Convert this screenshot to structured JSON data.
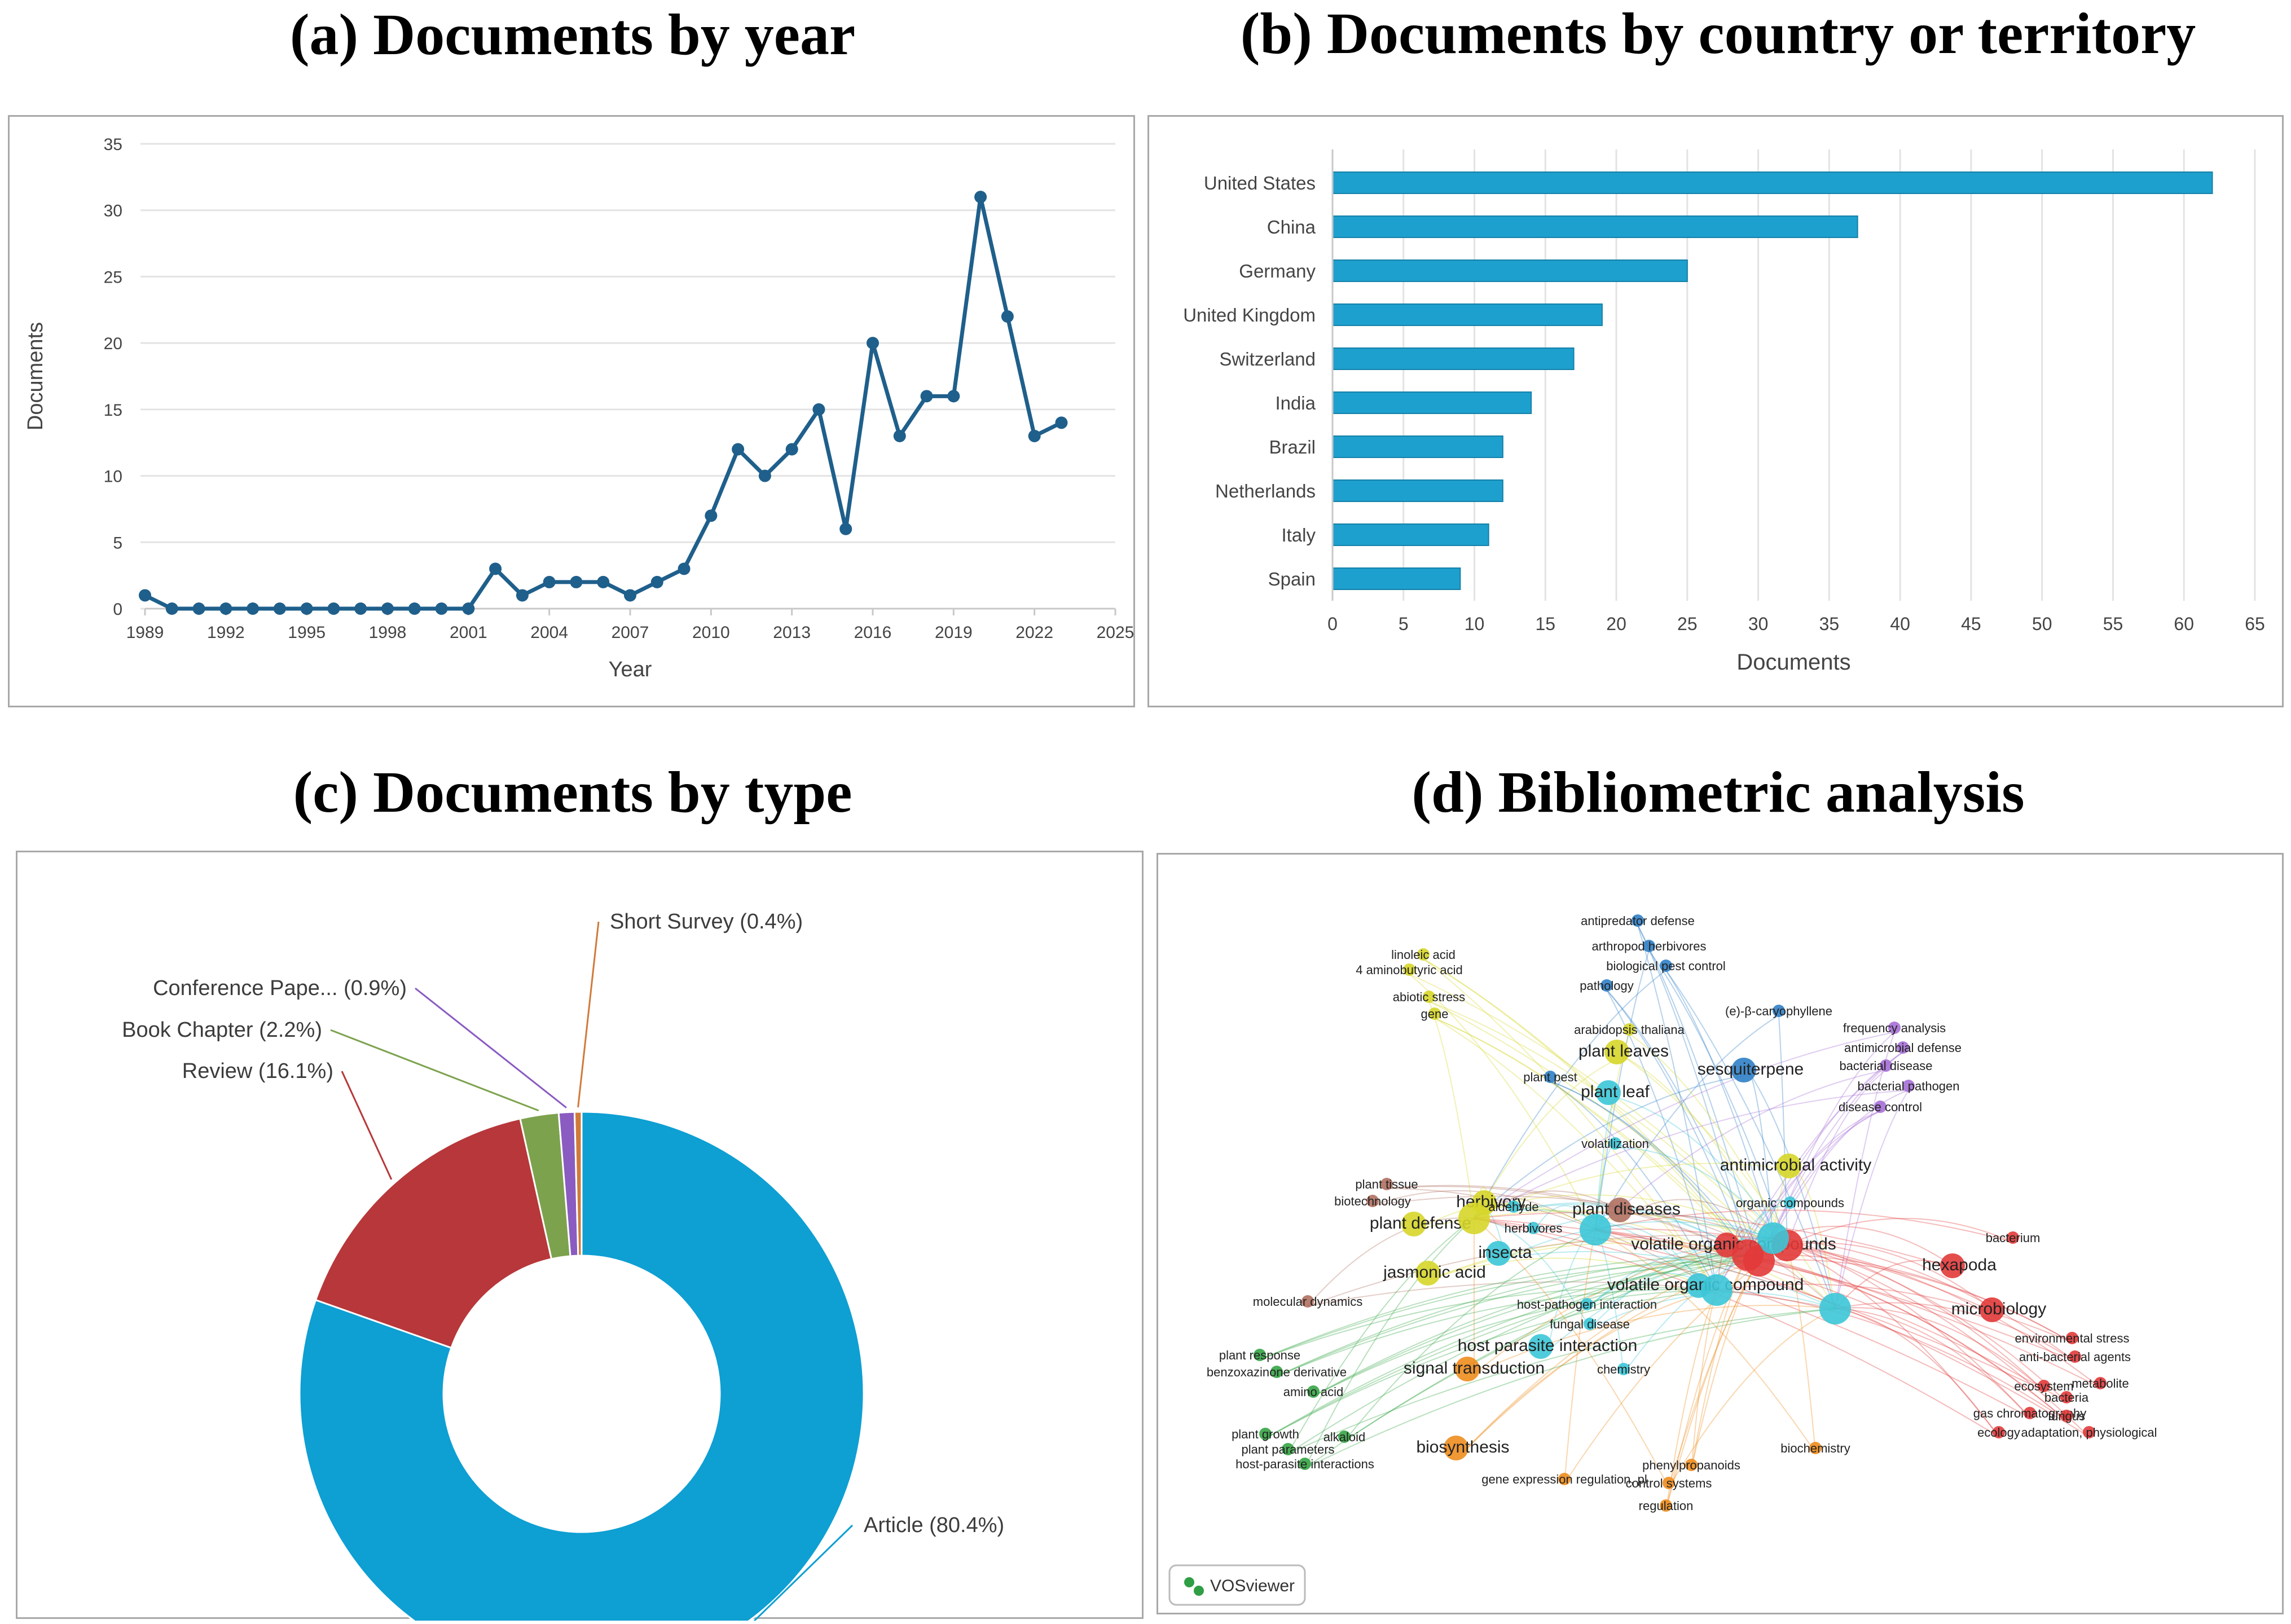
{
  "panels": {
    "a": {
      "title": "(a) Documents by year"
    },
    "b": {
      "title": "(b) Documents by country or territory"
    },
    "c": {
      "title": "(c) Documents by type"
    },
    "d": {
      "title": "(d) Bibliometric analysis"
    }
  },
  "colors": {
    "line": "#1f5f8b",
    "bar": "#1ea0cf",
    "grid": "#e3e3e3"
  },
  "chart_data": [
    {
      "type": "line",
      "title": "(a) Documents by year",
      "xlabel": "Year",
      "ylabel": "Documents",
      "xlim": [
        1989,
        2025
      ],
      "ylim": [
        0,
        35
      ],
      "xticks": [
        1989,
        1992,
        1995,
        1998,
        2001,
        2004,
        2007,
        2010,
        2013,
        2016,
        2019,
        2022,
        2025
      ],
      "yticks": [
        0,
        5,
        10,
        15,
        20,
        25,
        30,
        35
      ],
      "grid": true,
      "x": [
        1989,
        1990,
        1991,
        1992,
        1993,
        1994,
        1995,
        1996,
        1997,
        1998,
        1999,
        2000,
        2001,
        2002,
        2003,
        2004,
        2005,
        2006,
        2007,
        2008,
        2009,
        2010,
        2011,
        2012,
        2013,
        2014,
        2015,
        2016,
        2017,
        2018,
        2019,
        2020,
        2021,
        2022,
        2023
      ],
      "values": [
        1,
        0,
        0,
        0,
        0,
        0,
        0,
        0,
        0,
        0,
        0,
        0,
        0,
        3,
        1,
        2,
        2,
        2,
        1,
        2,
        3,
        7,
        12,
        10,
        12,
        15,
        6,
        20,
        13,
        16,
        16,
        31,
        22,
        13,
        14
      ]
    },
    {
      "type": "bar",
      "orientation": "horizontal",
      "title": "(b) Documents by country or territory",
      "xlabel": "Documents",
      "xlim": [
        0,
        65
      ],
      "xticks": [
        0,
        5,
        10,
        15,
        20,
        25,
        30,
        35,
        40,
        45,
        50,
        55,
        60,
        65
      ],
      "grid": true,
      "categories": [
        "United States",
        "China",
        "Germany",
        "United Kingdom",
        "Switzerland",
        "India",
        "Brazil",
        "Netherlands",
        "Italy",
        "Spain"
      ],
      "values": [
        62,
        37,
        25,
        19,
        17,
        14,
        12,
        12,
        11,
        9
      ]
    },
    {
      "type": "pie",
      "donut": true,
      "title": "(c) Documents by type",
      "slices": [
        {
          "label": "Article (80.4%)",
          "value": 80.4,
          "color": "#0e9fd3"
        },
        {
          "label": "Review (16.1%)",
          "value": 16.1,
          "color": "#b7373a"
        },
        {
          "label": "Book Chapter (2.2%)",
          "value": 2.2,
          "color": "#7da24e"
        },
        {
          "label": "Conference Pape... (0.9%)",
          "value": 0.9,
          "color": "#8a5bc1"
        },
        {
          "label": "Short Survey (0.4%)",
          "value": 0.4,
          "color": "#d07a3a"
        }
      ]
    }
  ],
  "network": {
    "title": "(d) Bibliometric analysis",
    "logo": "VOSviewer",
    "clusters": {
      "red": "#e23a3a",
      "cyan": "#3cc7d8",
      "blue": "#2f7fc6",
      "yellow": "#d6d62a",
      "green": "#35a545",
      "orange": "#ee8d1e",
      "purple": "#a56fd6",
      "brown": "#b07060"
    },
    "labels": [
      {
        "text": "antipredator defense",
        "c": "blue",
        "big": false
      },
      {
        "text": "arthropod herbivores",
        "c": "blue",
        "big": false
      },
      {
        "text": "biological pest control",
        "c": "blue",
        "big": false
      },
      {
        "text": "pathology",
        "c": "blue",
        "big": false
      },
      {
        "text": "(e)-β-caryophyllene",
        "c": "blue",
        "big": false
      },
      {
        "text": "sesquiterpene",
        "c": "blue",
        "big": true
      },
      {
        "text": "linoleic acid",
        "c": "yellow",
        "big": false
      },
      {
        "text": "4 aminobutyric acid",
        "c": "yellow",
        "big": false
      },
      {
        "text": "abiotic stress",
        "c": "yellow",
        "big": false
      },
      {
        "text": "gene",
        "c": "yellow",
        "big": false
      },
      {
        "text": "arabidopsis thaliana",
        "c": "yellow",
        "big": false
      },
      {
        "text": "plant leaves",
        "c": "yellow",
        "big": true
      },
      {
        "text": "plant pest",
        "c": "blue",
        "big": false
      },
      {
        "text": "plant leaf",
        "c": "cyan",
        "big": true
      },
      {
        "text": "frequency analysis",
        "c": "purple",
        "big": false
      },
      {
        "text": "antimicrobial defense",
        "c": "purple",
        "big": false
      },
      {
        "text": "bacterial disease",
        "c": "purple",
        "big": false
      },
      {
        "text": "bacterial pathogen",
        "c": "purple",
        "big": false
      },
      {
        "text": "disease control",
        "c": "purple",
        "big": false
      },
      {
        "text": "volatilization",
        "c": "cyan",
        "big": false
      },
      {
        "text": "antimicrobial activity",
        "c": "yellow",
        "big": true
      },
      {
        "text": "plant tissue",
        "c": "brown",
        "big": false
      },
      {
        "text": "biotechnology",
        "c": "brown",
        "big": false
      },
      {
        "text": "herbivory",
        "c": "yellow",
        "big": true
      },
      {
        "text": "aldehyde",
        "c": "cyan",
        "big": false
      },
      {
        "text": "herbivores",
        "c": "cyan",
        "big": false
      },
      {
        "text": "plant diseases",
        "c": "brown",
        "big": true
      },
      {
        "text": "organic compounds",
        "c": "cyan",
        "big": false
      },
      {
        "text": "plant defense",
        "c": "yellow",
        "big": true
      },
      {
        "text": "insecta",
        "c": "cyan",
        "big": true
      },
      {
        "text": "volatile organic compounds",
        "c": "red",
        "big": true
      },
      {
        "text": "bacterium",
        "c": "red",
        "big": false
      },
      {
        "text": "hexapoda",
        "c": "red",
        "big": true
      },
      {
        "text": "jasmonic acid",
        "c": "yellow",
        "big": true
      },
      {
        "text": "volatile organic compound",
        "c": "cyan",
        "big": true
      },
      {
        "text": "molecular dynamics",
        "c": "brown",
        "big": false
      },
      {
        "text": "host-pathogen interaction",
        "c": "cyan",
        "big": false
      },
      {
        "text": "microbiology",
        "c": "red",
        "big": true
      },
      {
        "text": "fungal disease",
        "c": "cyan",
        "big": false
      },
      {
        "text": "environmental stress",
        "c": "red",
        "big": false
      },
      {
        "text": "host parasite interaction",
        "c": "cyan",
        "big": true
      },
      {
        "text": "anti-bacterial agents",
        "c": "red",
        "big": false
      },
      {
        "text": "plant response",
        "c": "green",
        "big": false
      },
      {
        "text": "chemistry",
        "c": "cyan",
        "big": false
      },
      {
        "text": "signal transduction",
        "c": "orange",
        "big": true
      },
      {
        "text": "benzoxazinone derivative",
        "c": "green",
        "big": false
      },
      {
        "text": "metabolite",
        "c": "red",
        "big": false
      },
      {
        "text": "ecosystem",
        "c": "red",
        "big": false
      },
      {
        "text": "amino acid",
        "c": "green",
        "big": false
      },
      {
        "text": "bacteria",
        "c": "red",
        "big": false
      },
      {
        "text": "gas chromatography",
        "c": "red",
        "big": false
      },
      {
        "text": "fungus",
        "c": "red",
        "big": false
      },
      {
        "text": "adaptation, physiological",
        "c": "red",
        "big": false
      },
      {
        "text": "ecology",
        "c": "red",
        "big": false
      },
      {
        "text": "plant growth",
        "c": "green",
        "big": false
      },
      {
        "text": "alkaloid",
        "c": "green",
        "big": false
      },
      {
        "text": "plant parameters",
        "c": "green",
        "big": false
      },
      {
        "text": "biosynthesis",
        "c": "orange",
        "big": true
      },
      {
        "text": "biochemistry",
        "c": "orange",
        "big": false
      },
      {
        "text": "host-parasite interactions",
        "c": "green",
        "big": false
      },
      {
        "text": "phenylpropanoids",
        "c": "orange",
        "big": false
      },
      {
        "text": "gene expression regulation, pl",
        "c": "orange",
        "big": false
      },
      {
        "text": "control systems",
        "c": "orange",
        "big": false
      },
      {
        "text": "regulation",
        "c": "orange",
        "big": false
      }
    ]
  }
}
